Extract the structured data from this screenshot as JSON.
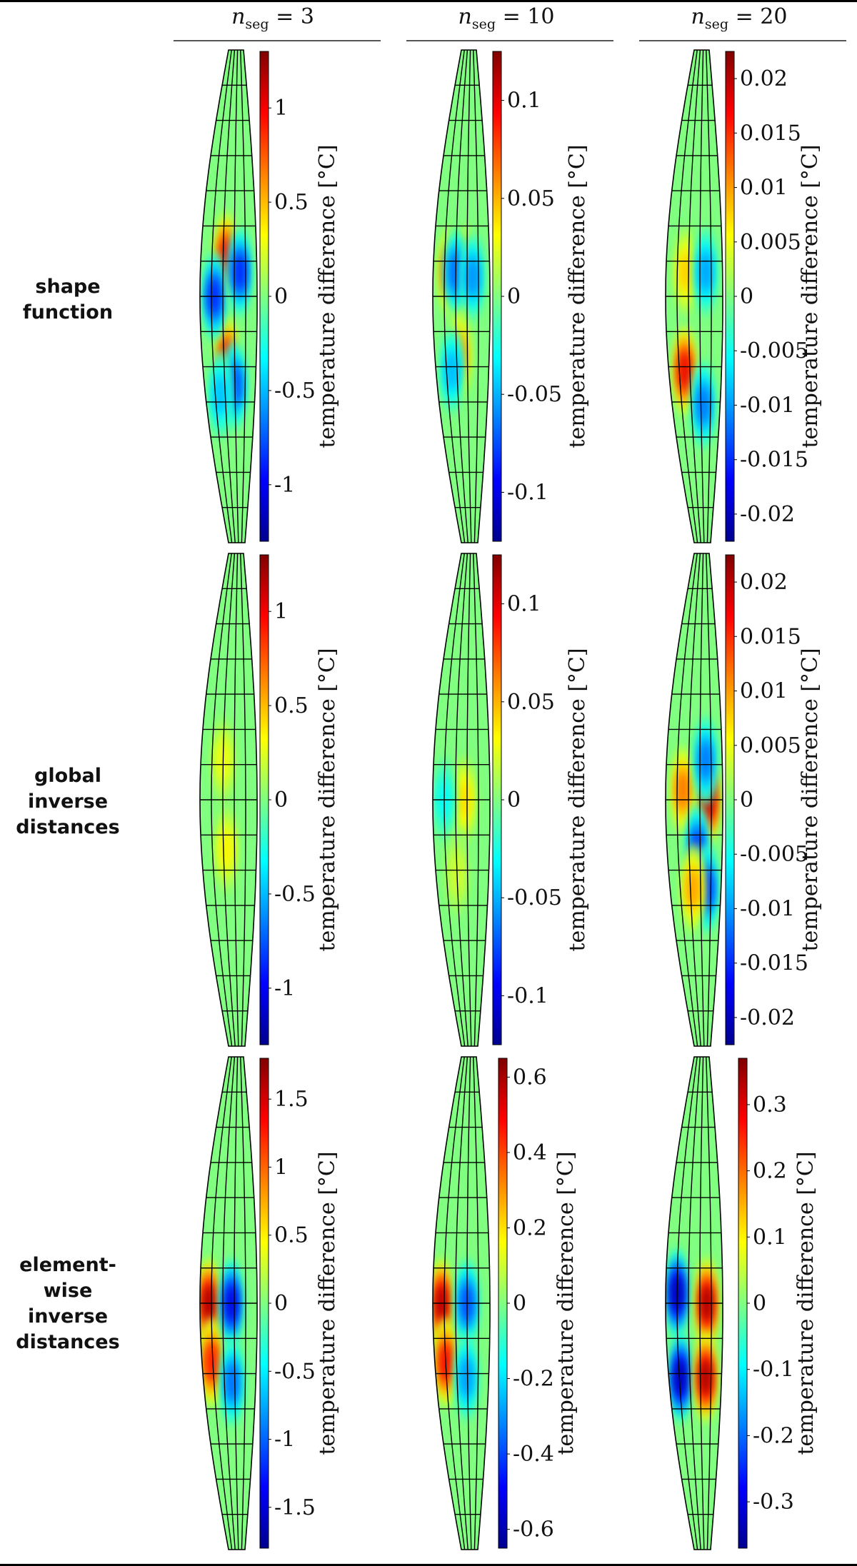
{
  "columns": [
    {
      "prefix": "n",
      "sub": "seg",
      "value": "= 3"
    },
    {
      "prefix": "n",
      "sub": "seg",
      "value": "= 10"
    },
    {
      "prefix": "n",
      "sub": "seg",
      "value": "= 20"
    }
  ],
  "rows": [
    {
      "label_lines": [
        "shape",
        "function"
      ]
    },
    {
      "label_lines": [
        "global",
        "inverse",
        "distances"
      ]
    },
    {
      "label_lines": [
        "element-",
        "wise",
        "inverse",
        "distances"
      ]
    }
  ],
  "colorbar_label": "temperature difference [°C]",
  "colormap": [
    "#00008f",
    "#0000ff",
    "#0080ff",
    "#00ffff",
    "#80ff80",
    "#ffff00",
    "#ff8000",
    "#ff0000",
    "#800000"
  ],
  "background_color": "#80ff80",
  "panels": [
    {
      "row": 0,
      "col": 0,
      "range": [
        -1.3,
        1.3
      ],
      "ticks": [
        "1",
        "0.5",
        "0",
        "-0.5",
        "-1"
      ],
      "tick_values": [
        1,
        0.5,
        0,
        -0.5,
        -1
      ],
      "blobs": [
        {
          "u": 0.45,
          "v": 0.42,
          "val": 1.0
        },
        {
          "u": 0.45,
          "v": 0.63,
          "val": 1.0
        },
        {
          "u": 0.25,
          "v": 0.5,
          "val": -0.9
        },
        {
          "u": 0.7,
          "v": 0.45,
          "val": -0.9
        },
        {
          "u": 0.6,
          "v": 0.68,
          "val": -0.8
        },
        {
          "u": 0.3,
          "v": 0.7,
          "val": -0.5
        }
      ]
    },
    {
      "row": 0,
      "col": 1,
      "range": [
        -0.125,
        0.125
      ],
      "ticks": [
        "0.1",
        "0.05",
        "0",
        "-0.05",
        "-0.1"
      ],
      "tick_values": [
        0.1,
        0.05,
        0,
        -0.05,
        -0.1
      ],
      "blobs": [
        {
          "u": 0.3,
          "v": 0.45,
          "val": 0.08
        },
        {
          "u": 0.55,
          "v": 0.45,
          "val": 0.09
        },
        {
          "u": 0.4,
          "v": 0.45,
          "val": -0.07
        },
        {
          "u": 0.7,
          "v": 0.46,
          "val": -0.06
        },
        {
          "u": 0.45,
          "v": 0.62,
          "val": 0.06
        },
        {
          "u": 0.3,
          "v": 0.65,
          "val": -0.05
        }
      ]
    },
    {
      "row": 0,
      "col": 2,
      "range": [
        -0.0225,
        0.0225
      ],
      "ticks": [
        "0.02",
        "0.015",
        "0.01",
        "0.005",
        "0",
        "-0.005",
        "-0.01",
        "-0.015",
        "-0.02"
      ],
      "tick_values": [
        0.02,
        0.015,
        0.01,
        0.005,
        0,
        -0.005,
        -0.01,
        -0.015,
        -0.02
      ],
      "blobs": [
        {
          "u": 0.3,
          "v": 0.65,
          "val": 0.018
        },
        {
          "u": 0.35,
          "v": 0.45,
          "val": 0.008
        },
        {
          "u": 0.7,
          "v": 0.45,
          "val": -0.01
        },
        {
          "u": 0.65,
          "v": 0.72,
          "val": -0.012
        }
      ]
    },
    {
      "row": 1,
      "col": 0,
      "range": [
        -1.3,
        1.3
      ],
      "ticks": [
        "1",
        "0.5",
        "0",
        "-0.5",
        "-1"
      ],
      "tick_values": [
        1,
        0.5,
        0,
        -0.5,
        -1
      ],
      "blobs": [
        {
          "u": 0.4,
          "v": 0.42,
          "val": 0.3
        },
        {
          "u": 0.45,
          "v": 0.6,
          "val": 0.35
        }
      ]
    },
    {
      "row": 1,
      "col": 1,
      "range": [
        -0.125,
        0.125
      ],
      "ticks": [
        "0.1",
        "0.05",
        "0",
        "-0.05",
        "-0.1"
      ],
      "tick_values": [
        0.1,
        0.05,
        0,
        -0.05,
        -0.1
      ],
      "blobs": [
        {
          "u": 0.55,
          "v": 0.5,
          "val": 0.04
        },
        {
          "u": 0.2,
          "v": 0.5,
          "val": -0.03
        },
        {
          "u": 0.4,
          "v": 0.65,
          "val": 0.02
        }
      ]
    },
    {
      "row": 1,
      "col": 2,
      "range": [
        -0.0225,
        0.0225
      ],
      "ticks": [
        "0.02",
        "0.015",
        "0.01",
        "0.005",
        "0",
        "-0.005",
        "-0.01",
        "-0.015",
        "-0.02"
      ],
      "tick_values": [
        0.02,
        0.015,
        0.01,
        0.005,
        0,
        -0.005,
        -0.01,
        -0.015,
        -0.02
      ],
      "blobs": [
        {
          "u": 0.75,
          "v": 0.5,
          "val": 0.02
        },
        {
          "u": 0.3,
          "v": 0.48,
          "val": 0.012
        },
        {
          "u": 0.55,
          "v": 0.6,
          "val": -0.015
        },
        {
          "u": 0.72,
          "v": 0.68,
          "val": -0.015
        },
        {
          "u": 0.45,
          "v": 0.68,
          "val": 0.01
        },
        {
          "u": 0.7,
          "v": 0.42,
          "val": -0.012
        }
      ]
    },
    {
      "row": 2,
      "col": 0,
      "range": [
        -1.8,
        1.8
      ],
      "ticks": [
        "1.5",
        "1",
        "0.5",
        "0",
        "-0.5",
        "-1",
        "-1.5"
      ],
      "tick_values": [
        1.5,
        1,
        0.5,
        0,
        -0.5,
        -1,
        -1.5
      ],
      "blobs": [
        {
          "u": 0.15,
          "v": 0.5,
          "val": 1.7
        },
        {
          "u": 0.18,
          "v": 0.62,
          "val": 1.3
        },
        {
          "u": 0.55,
          "v": 0.5,
          "val": -1.5
        },
        {
          "u": 0.55,
          "v": 0.66,
          "val": -1.0
        }
      ]
    },
    {
      "row": 2,
      "col": 1,
      "range": [
        -0.65,
        0.65
      ],
      "ticks": [
        "0.6",
        "0.4",
        "0.2",
        "0",
        "-0.2",
        "-0.4",
        "-0.6"
      ],
      "tick_values": [
        0.6,
        0.4,
        0.2,
        0,
        -0.2,
        -0.4,
        -0.6
      ],
      "blobs": [
        {
          "u": 0.15,
          "v": 0.5,
          "val": 0.6
        },
        {
          "u": 0.2,
          "v": 0.62,
          "val": 0.5
        },
        {
          "u": 0.6,
          "v": 0.5,
          "val": -0.4
        },
        {
          "u": 0.58,
          "v": 0.65,
          "val": -0.3
        }
      ]
    },
    {
      "row": 2,
      "col": 2,
      "range": [
        -0.37,
        0.37
      ],
      "ticks": [
        "0.3",
        "0.2",
        "0.1",
        "0",
        "-0.1",
        "-0.2",
        "-0.3"
      ],
      "tick_values": [
        0.3,
        0.2,
        0.1,
        0,
        -0.1,
        -0.2,
        -0.3
      ],
      "blobs": [
        {
          "u": 0.2,
          "v": 0.48,
          "val": -0.35
        },
        {
          "u": 0.22,
          "v": 0.65,
          "val": -0.35
        },
        {
          "u": 0.72,
          "v": 0.5,
          "val": 0.35
        },
        {
          "u": 0.7,
          "v": 0.65,
          "val": 0.35
        }
      ]
    }
  ]
}
